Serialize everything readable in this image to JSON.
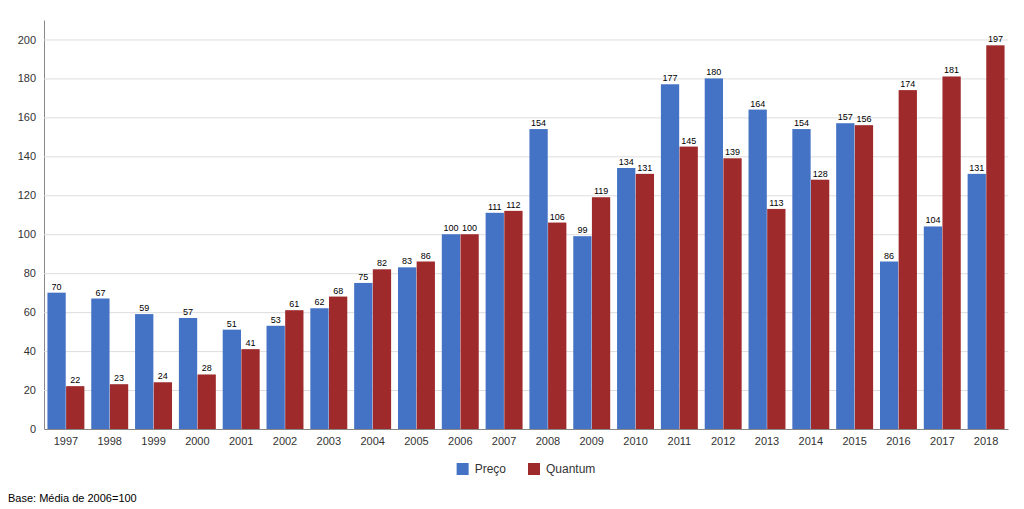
{
  "chart_data": {
    "type": "bar",
    "categories": [
      "1997",
      "1998",
      "1999",
      "2000",
      "2001",
      "2002",
      "2003",
      "2004",
      "2005",
      "2006",
      "2007",
      "2008",
      "2009",
      "2010",
      "2011",
      "2012",
      "2013",
      "2014",
      "2015",
      "2016",
      "2017",
      "2018"
    ],
    "series": [
      {
        "name": "Preço",
        "color": "#4472C4",
        "values": [
          70,
          67,
          59,
          57,
          51,
          53,
          62,
          75,
          83,
          100,
          111,
          154,
          99,
          134,
          177,
          180,
          164,
          154,
          157,
          86,
          104,
          131
        ]
      },
      {
        "name": "Quantum",
        "color": "#9E2A2B",
        "values": [
          22,
          23,
          24,
          28,
          41,
          61,
          68,
          82,
          86,
          100,
          112,
          106,
          119,
          131,
          145,
          139,
          113,
          128,
          156,
          174,
          181,
          197
        ]
      }
    ],
    "ylim": [
      0,
      210
    ],
    "yticks": [
      0,
      20,
      40,
      60,
      80,
      100,
      120,
      140,
      160,
      180,
      200
    ],
    "grid": true,
    "data_labels": true,
    "legend": "bottom",
    "footnote": "Base: Média de 2006=100"
  }
}
